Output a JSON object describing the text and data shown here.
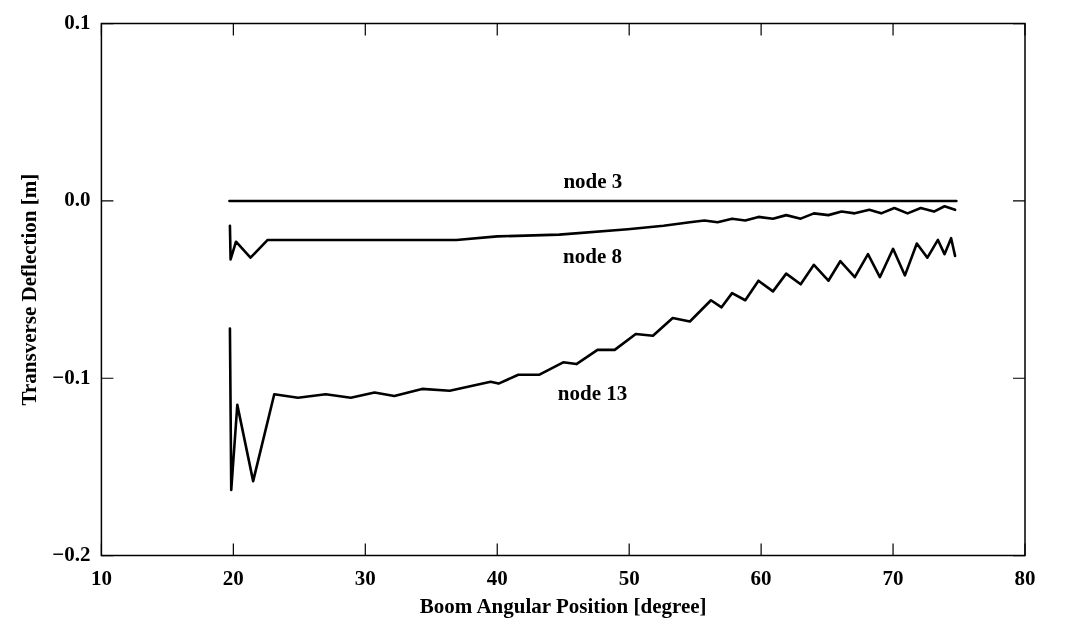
{
  "chart_data": {
    "type": "line",
    "xlabel": "Boom Angular Position [degree]",
    "ylabel": "Transverse Deflection [m]",
    "xlim": [
      10,
      80
    ],
    "xticks": [
      10,
      20,
      30,
      40,
      50,
      60,
      70,
      80
    ],
    "ylim": [
      -0.2,
      0.1
    ],
    "yticks": [
      {
        "value": -0.2,
        "label": "−0.2"
      },
      {
        "value": -0.1,
        "label": "−0.1"
      },
      {
        "value": 0,
        "label": "0.0"
      },
      {
        "value": 0.1,
        "label": "0.1"
      }
    ],
    "grid": false,
    "legend": false,
    "marker": "none",
    "line_style": "solid",
    "series": [
      {
        "name": "node 3",
        "color": "#000000",
        "x": [
          19.7,
          74.8
        ],
        "values": [
          0,
          0
        ]
      },
      {
        "name": "node 8",
        "color": "#000000",
        "x": [
          19.74,
          19.79,
          20.2,
          21.3,
          22.6,
          26.5,
          31.7,
          36.9,
          40.0,
          44.7,
          49.9,
          52.6,
          54.6,
          55.7,
          56.7,
          57.8,
          58.8,
          59.8,
          60.9,
          61.9,
          63.0,
          64.0,
          65.1,
          66.1,
          67.1,
          68.2,
          69.1,
          70.1,
          71.1,
          72.1,
          73.1,
          73.9,
          74.7
        ],
        "values": [
          -0.014,
          -0.033,
          -0.023,
          -0.032,
          -0.022,
          -0.022,
          -0.022,
          -0.022,
          -0.02,
          -0.019,
          -0.016,
          -0.014,
          -0.012,
          -0.011,
          -0.012,
          -0.01,
          -0.011,
          -0.009,
          -0.01,
          -0.008,
          -0.01,
          -0.007,
          -0.008,
          -0.006,
          -0.007,
          -0.005,
          -0.007,
          -0.004,
          -0.007,
          -0.004,
          -0.006,
          -0.003,
          -0.005
        ]
      },
      {
        "name": "node 13",
        "color": "#000000",
        "x": [
          19.74,
          19.84,
          20.3,
          21.5,
          23.1,
          24.9,
          27.0,
          28.9,
          30.7,
          32.2,
          34.3,
          36.4,
          39.5,
          40.1,
          41.6,
          43.2,
          45.0,
          46.0,
          47.6,
          48.9,
          50.5,
          51.8,
          53.3,
          54.6,
          56.2,
          57.0,
          57.8,
          58.8,
          59.8,
          60.9,
          61.9,
          63.0,
          64.0,
          65.1,
          66.0,
          67.1,
          68.1,
          69.0,
          70.0,
          70.9,
          71.8,
          72.6,
          73.4,
          73.9,
          74.4,
          74.7
        ],
        "values": [
          -0.072,
          -0.163,
          -0.115,
          -0.158,
          -0.109,
          -0.111,
          -0.109,
          -0.111,
          -0.108,
          -0.11,
          -0.106,
          -0.107,
          -0.102,
          -0.103,
          -0.098,
          -0.098,
          -0.091,
          -0.092,
          -0.084,
          -0.084,
          -0.075,
          -0.076,
          -0.066,
          -0.068,
          -0.056,
          -0.06,
          -0.052,
          -0.056,
          -0.045,
          -0.051,
          -0.041,
          -0.047,
          -0.036,
          -0.045,
          -0.034,
          -0.043,
          -0.03,
          -0.043,
          -0.027,
          -0.042,
          -0.024,
          -0.032,
          -0.022,
          -0.03,
          -0.021,
          -0.031
        ]
      }
    ]
  }
}
